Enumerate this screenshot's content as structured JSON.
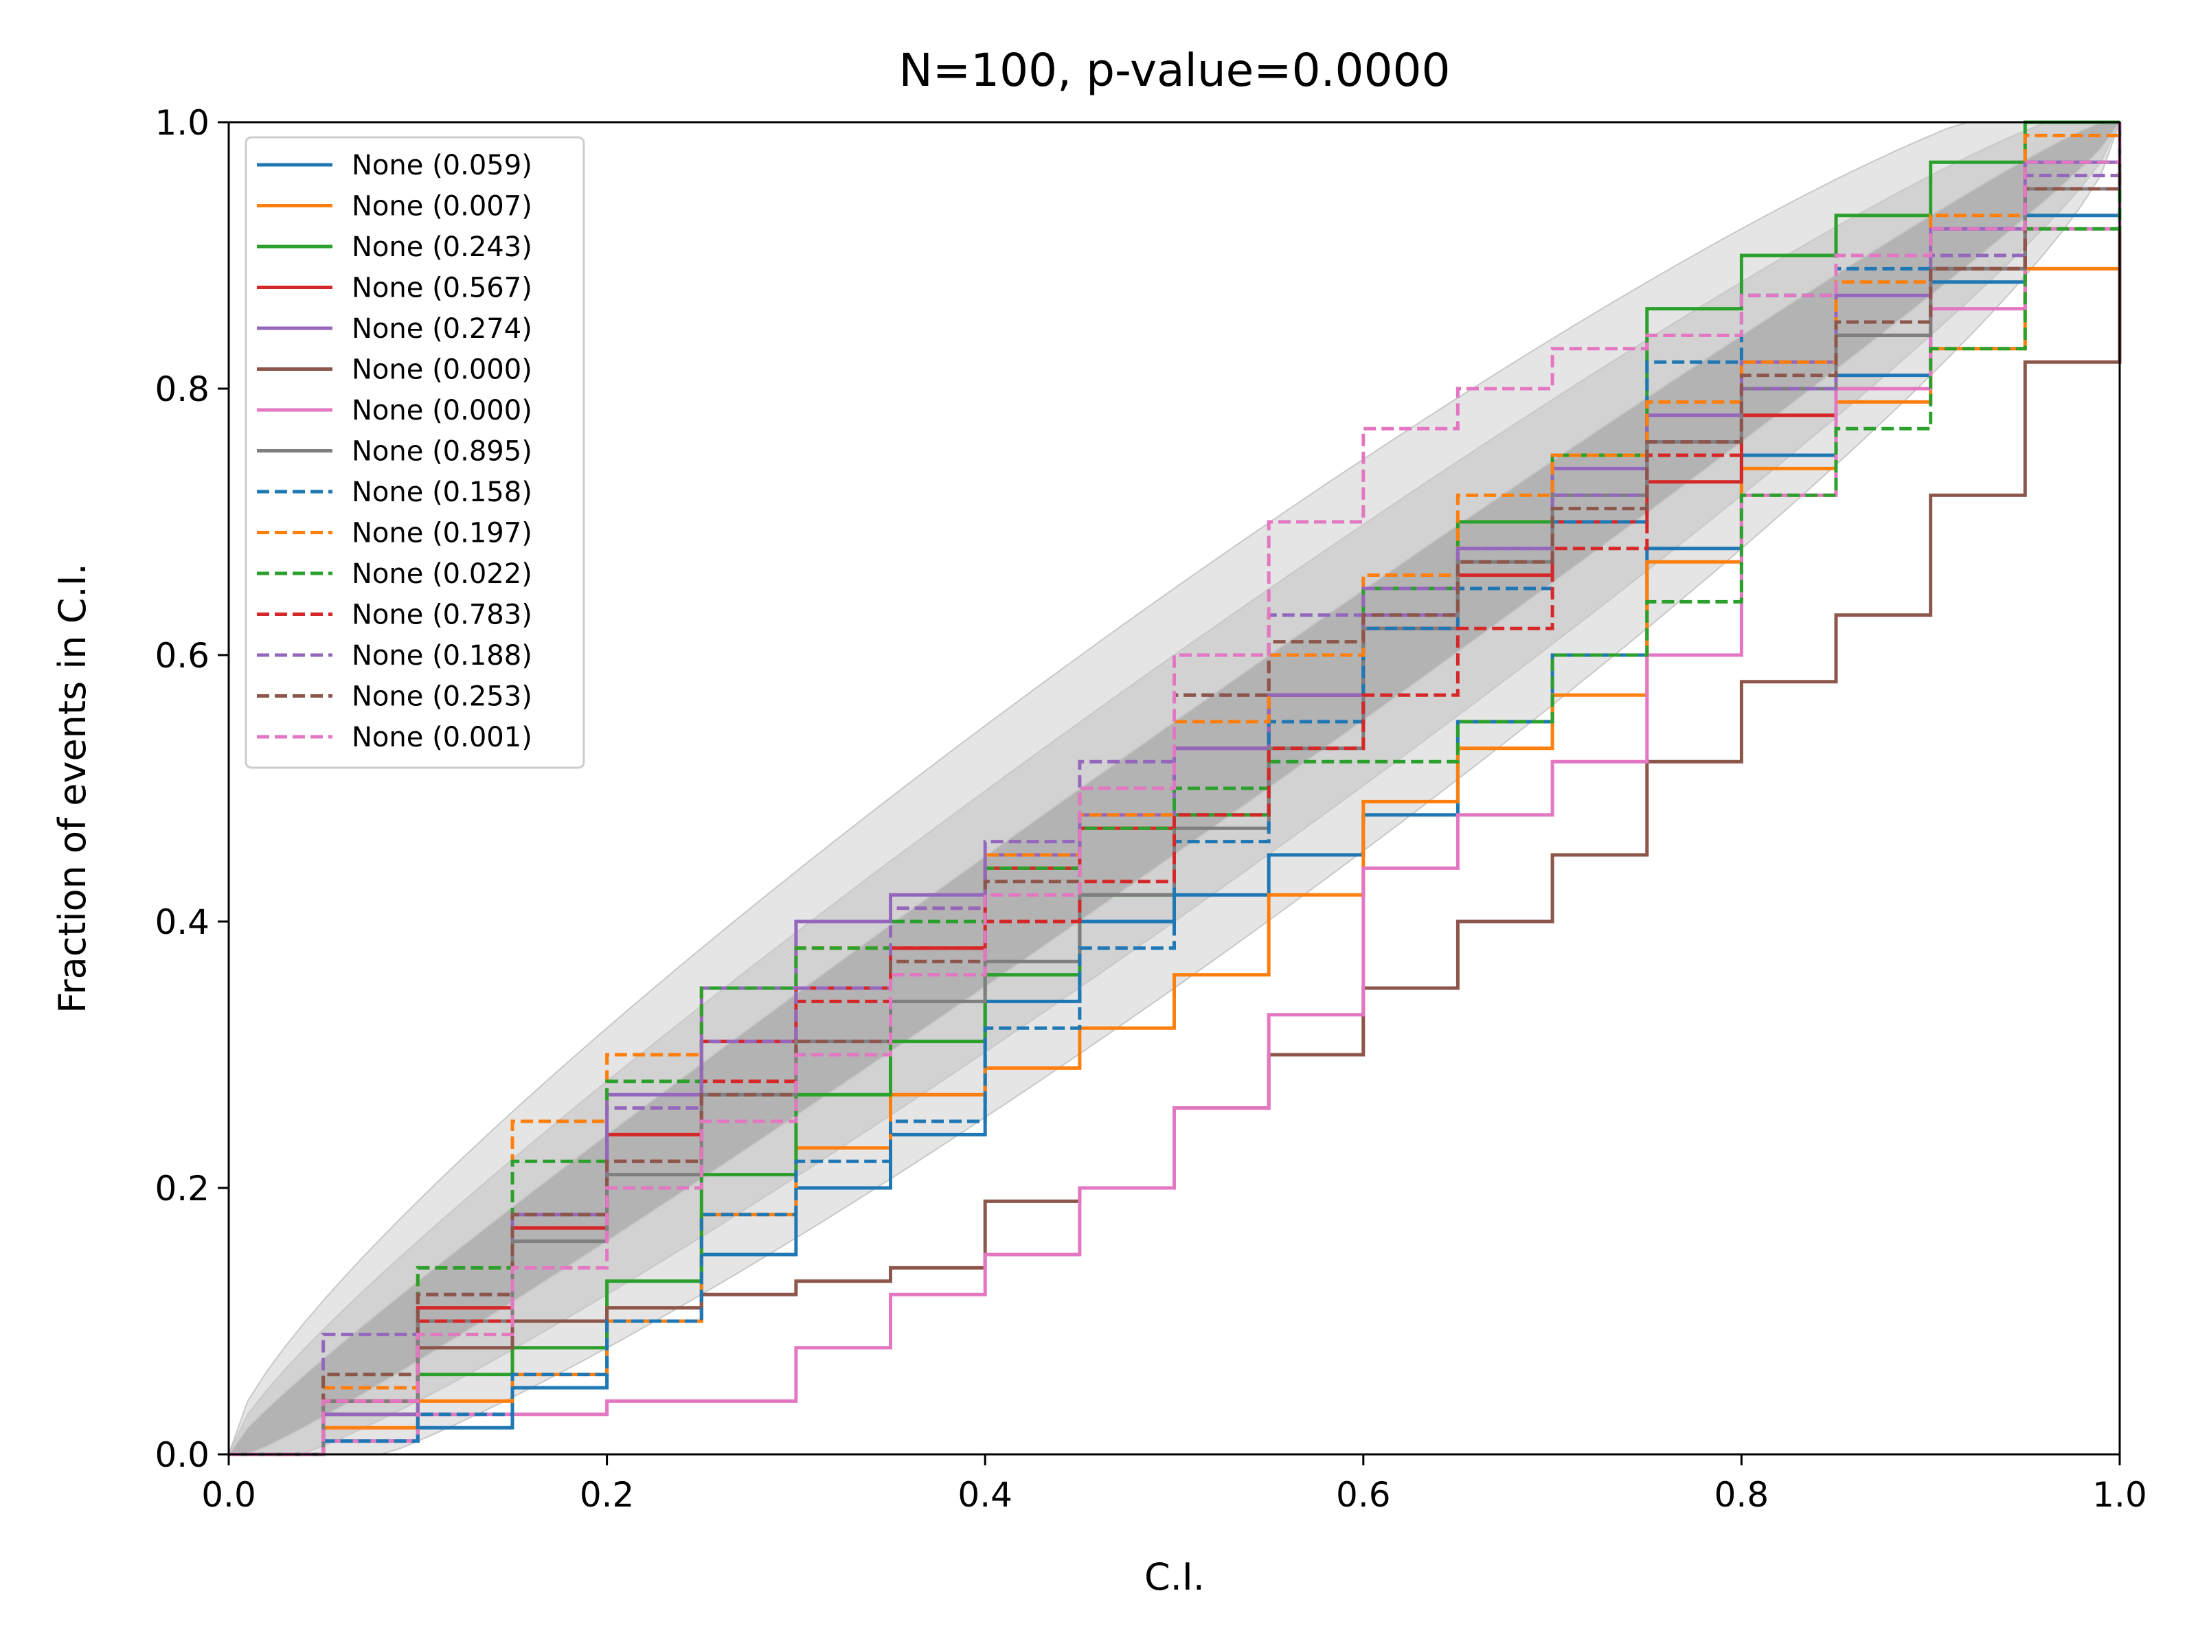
{
  "chart_data": {
    "type": "line",
    "title": "N=100, p-value=0.0000",
    "xlabel": "C.I.",
    "ylabel": "Fraction of events in C.I.",
    "xlim": [
      0.0,
      1.0
    ],
    "ylim": [
      0.0,
      1.0
    ],
    "xticks": [
      "0.0",
      "0.2",
      "0.4",
      "0.6",
      "0.8",
      "1.0"
    ],
    "yticks": [
      "0.0",
      "0.2",
      "0.4",
      "0.6",
      "0.8",
      "1.0"
    ],
    "grid": false,
    "legend_position": "upper-left",
    "bands": [
      {
        "level": "outer",
        "color": "#e5e5e5"
      },
      {
        "level": "middle",
        "color": "#d2d2d2"
      },
      {
        "level": "inner",
        "color": "#b3b3b3"
      }
    ],
    "series": [
      {
        "name": "None (0.059)",
        "color": "#1f77b4",
        "dash": "solid",
        "x": [
          0.0,
          0.05,
          0.1,
          0.15,
          0.2,
          0.25,
          0.3,
          0.35,
          0.4,
          0.45,
          0.5,
          0.55,
          0.6,
          0.65,
          0.7,
          0.75,
          0.8,
          0.85,
          0.9,
          0.95,
          1.0
        ],
        "y": [
          0.0,
          0.01,
          0.02,
          0.05,
          0.1,
          0.15,
          0.2,
          0.24,
          0.34,
          0.4,
          0.42,
          0.45,
          0.48,
          0.55,
          0.6,
          0.68,
          0.75,
          0.81,
          0.88,
          0.93,
          1.0
        ]
      },
      {
        "name": "None (0.007)",
        "color": "#ff7f0e",
        "dash": "solid",
        "x": [
          0.0,
          0.05,
          0.1,
          0.15,
          0.2,
          0.25,
          0.3,
          0.35,
          0.4,
          0.45,
          0.5,
          0.55,
          0.6,
          0.65,
          0.7,
          0.75,
          0.8,
          0.85,
          0.9,
          0.95,
          1.0
        ],
        "y": [
          0.0,
          0.02,
          0.04,
          0.06,
          0.1,
          0.18,
          0.23,
          0.27,
          0.29,
          0.32,
          0.36,
          0.42,
          0.49,
          0.53,
          0.57,
          0.67,
          0.74,
          0.79,
          0.83,
          0.89,
          1.0
        ]
      },
      {
        "name": "None (0.243)",
        "color": "#2ca02c",
        "dash": "solid",
        "x": [
          0.0,
          0.05,
          0.1,
          0.15,
          0.2,
          0.25,
          0.3,
          0.35,
          0.4,
          0.45,
          0.5,
          0.55,
          0.6,
          0.65,
          0.7,
          0.75,
          0.8,
          0.85,
          0.9,
          0.95,
          1.0
        ],
        "y": [
          0.0,
          0.03,
          0.06,
          0.08,
          0.13,
          0.21,
          0.27,
          0.31,
          0.36,
          0.42,
          0.48,
          0.57,
          0.65,
          0.7,
          0.75,
          0.86,
          0.9,
          0.93,
          0.97,
          1.0,
          1.0
        ]
      },
      {
        "name": "None (0.567)",
        "color": "#d62728",
        "dash": "solid",
        "x": [
          0.0,
          0.05,
          0.1,
          0.15,
          0.2,
          0.25,
          0.3,
          0.35,
          0.4,
          0.45,
          0.5,
          0.55,
          0.6,
          0.65,
          0.7,
          0.75,
          0.8,
          0.85,
          0.9,
          0.95,
          1.0
        ],
        "y": [
          0.0,
          0.04,
          0.11,
          0.17,
          0.24,
          0.31,
          0.35,
          0.38,
          0.44,
          0.47,
          0.53,
          0.57,
          0.62,
          0.66,
          0.7,
          0.73,
          0.78,
          0.84,
          0.89,
          0.95,
          1.0
        ]
      },
      {
        "name": "None (0.274)",
        "color": "#9467bd",
        "dash": "solid",
        "x": [
          0.0,
          0.05,
          0.1,
          0.15,
          0.2,
          0.25,
          0.3,
          0.35,
          0.4,
          0.45,
          0.5,
          0.55,
          0.6,
          0.65,
          0.7,
          0.75,
          0.8,
          0.85,
          0.9,
          0.95,
          1.0
        ],
        "y": [
          0.0,
          0.03,
          0.1,
          0.18,
          0.27,
          0.35,
          0.4,
          0.42,
          0.45,
          0.48,
          0.53,
          0.57,
          0.63,
          0.68,
          0.74,
          0.78,
          0.82,
          0.87,
          0.92,
          0.97,
          1.0
        ]
      },
      {
        "name": "None (0.000)",
        "color": "#8c564b",
        "dash": "solid",
        "x": [
          0.0,
          0.05,
          0.1,
          0.15,
          0.2,
          0.25,
          0.3,
          0.35,
          0.4,
          0.45,
          0.5,
          0.55,
          0.6,
          0.65,
          0.7,
          0.75,
          0.8,
          0.85,
          0.9,
          0.95,
          1.0
        ],
        "y": [
          0.0,
          0.04,
          0.08,
          0.1,
          0.11,
          0.12,
          0.13,
          0.14,
          0.19,
          0.2,
          0.26,
          0.3,
          0.35,
          0.4,
          0.45,
          0.52,
          0.58,
          0.63,
          0.72,
          0.82,
          0.97
        ]
      },
      {
        "name": "None (0.000)",
        "color": "#e377c2",
        "dash": "solid",
        "x": [
          0.0,
          0.05,
          0.1,
          0.15,
          0.2,
          0.25,
          0.3,
          0.35,
          0.4,
          0.45,
          0.5,
          0.55,
          0.6,
          0.65,
          0.7,
          0.75,
          0.8,
          0.85,
          0.9,
          0.95,
          1.0
        ],
        "y": [
          0.0,
          0.01,
          0.03,
          0.03,
          0.04,
          0.04,
          0.08,
          0.12,
          0.15,
          0.2,
          0.26,
          0.33,
          0.44,
          0.48,
          0.52,
          0.6,
          0.72,
          0.8,
          0.86,
          0.92,
          0.97
        ]
      },
      {
        "name": "None (0.895)",
        "color": "#7f7f7f",
        "dash": "solid",
        "x": [
          0.0,
          0.05,
          0.1,
          0.15,
          0.2,
          0.25,
          0.3,
          0.35,
          0.4,
          0.45,
          0.5,
          0.55,
          0.6,
          0.65,
          0.7,
          0.75,
          0.8,
          0.85,
          0.9,
          0.95,
          1.0
        ],
        "y": [
          0.0,
          0.04,
          0.1,
          0.16,
          0.21,
          0.27,
          0.31,
          0.34,
          0.37,
          0.42,
          0.47,
          0.53,
          0.62,
          0.67,
          0.72,
          0.76,
          0.8,
          0.84,
          0.89,
          0.95,
          1.0
        ]
      },
      {
        "name": "None (0.158)",
        "color": "#1f77b4",
        "dash": "dashed",
        "x": [
          0.0,
          0.05,
          0.1,
          0.15,
          0.2,
          0.25,
          0.3,
          0.35,
          0.4,
          0.45,
          0.5,
          0.55,
          0.6,
          0.65,
          0.7,
          0.75,
          0.8,
          0.85,
          0.9,
          0.95,
          1.0
        ],
        "y": [
          0.0,
          0.01,
          0.03,
          0.06,
          0.1,
          0.18,
          0.22,
          0.25,
          0.32,
          0.38,
          0.46,
          0.55,
          0.62,
          0.65,
          0.7,
          0.82,
          0.87,
          0.89,
          0.92,
          0.97,
          1.0
        ]
      },
      {
        "name": "None (0.197)",
        "color": "#ff7f0e",
        "dash": "dashed",
        "x": [
          0.0,
          0.05,
          0.1,
          0.15,
          0.2,
          0.25,
          0.3,
          0.35,
          0.4,
          0.45,
          0.5,
          0.55,
          0.6,
          0.65,
          0.7,
          0.75,
          0.8,
          0.85,
          0.9,
          0.95,
          1.0
        ],
        "y": [
          0.0,
          0.05,
          0.14,
          0.25,
          0.3,
          0.35,
          0.38,
          0.41,
          0.45,
          0.48,
          0.55,
          0.6,
          0.66,
          0.72,
          0.75,
          0.79,
          0.82,
          0.88,
          0.93,
          0.99,
          1.0
        ]
      },
      {
        "name": "None (0.022)",
        "color": "#2ca02c",
        "dash": "dashed",
        "x": [
          0.0,
          0.05,
          0.1,
          0.15,
          0.2,
          0.25,
          0.3,
          0.35,
          0.4,
          0.45,
          0.5,
          0.55,
          0.6,
          0.65,
          0.7,
          0.75,
          0.8,
          0.85,
          0.9,
          0.95,
          1.0
        ],
        "y": [
          0.0,
          0.06,
          0.14,
          0.22,
          0.28,
          0.35,
          0.38,
          0.4,
          0.44,
          0.47,
          0.5,
          0.52,
          0.52,
          0.55,
          0.6,
          0.64,
          0.72,
          0.77,
          0.83,
          0.92,
          1.0
        ]
      },
      {
        "name": "None (0.783)",
        "color": "#d62728",
        "dash": "dashed",
        "x": [
          0.0,
          0.05,
          0.1,
          0.15,
          0.2,
          0.25,
          0.3,
          0.35,
          0.4,
          0.45,
          0.5,
          0.55,
          0.6,
          0.65,
          0.7,
          0.75,
          0.8,
          0.85,
          0.9,
          0.95,
          1.0
        ],
        "y": [
          0.0,
          0.04,
          0.1,
          0.18,
          0.22,
          0.28,
          0.34,
          0.38,
          0.4,
          0.43,
          0.48,
          0.53,
          0.57,
          0.62,
          0.68,
          0.75,
          0.8,
          0.85,
          0.89,
          0.95,
          1.0
        ]
      },
      {
        "name": "None (0.188)",
        "color": "#9467bd",
        "dash": "dashed",
        "x": [
          0.0,
          0.05,
          0.1,
          0.15,
          0.2,
          0.25,
          0.3,
          0.35,
          0.4,
          0.45,
          0.5,
          0.55,
          0.6,
          0.65,
          0.7,
          0.75,
          0.8,
          0.85,
          0.9,
          0.95,
          1.0
        ],
        "y": [
          0.0,
          0.09,
          0.12,
          0.18,
          0.26,
          0.31,
          0.35,
          0.41,
          0.46,
          0.52,
          0.57,
          0.63,
          0.65,
          0.68,
          0.72,
          0.76,
          0.8,
          0.85,
          0.9,
          0.96,
          1.0
        ]
      },
      {
        "name": "None (0.253)",
        "color": "#8c564b",
        "dash": "dashed",
        "x": [
          0.0,
          0.05,
          0.1,
          0.15,
          0.2,
          0.25,
          0.3,
          0.35,
          0.4,
          0.45,
          0.5,
          0.55,
          0.6,
          0.65,
          0.7,
          0.75,
          0.8,
          0.85,
          0.9,
          0.95,
          1.0
        ],
        "y": [
          0.0,
          0.06,
          0.12,
          0.18,
          0.22,
          0.27,
          0.31,
          0.37,
          0.43,
          0.5,
          0.57,
          0.61,
          0.63,
          0.67,
          0.71,
          0.76,
          0.81,
          0.85,
          0.89,
          0.95,
          1.0
        ]
      },
      {
        "name": "None (0.001)",
        "color": "#e377c2",
        "dash": "dashed",
        "x": [
          0.0,
          0.05,
          0.1,
          0.15,
          0.2,
          0.25,
          0.3,
          0.35,
          0.4,
          0.45,
          0.5,
          0.55,
          0.6,
          0.65,
          0.7,
          0.75,
          0.8,
          0.85,
          0.9,
          0.95,
          1.0
        ],
        "y": [
          0.0,
          0.04,
          0.09,
          0.14,
          0.2,
          0.25,
          0.3,
          0.36,
          0.42,
          0.5,
          0.6,
          0.7,
          0.77,
          0.8,
          0.83,
          0.84,
          0.87,
          0.9,
          0.92,
          0.97,
          1.0
        ]
      }
    ]
  }
}
